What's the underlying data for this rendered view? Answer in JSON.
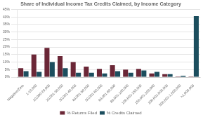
{
  "chart_data": {
    "type": "bar",
    "title": "Share of Individual Income Tax Credits Claimed, by Income Category",
    "categories": [
      "Negative/Zero",
      "1-10,000",
      "10,000-20,000",
      "20,001-30,000",
      "30,001-40,000",
      "40,001-50,000",
      "50,001-60,000",
      "60,001-80,000",
      "80,001-100,000",
      "100,001-150,000",
      "150,001-200,000",
      "200,001-500,000",
      "500,001-1,000,000",
      ">1,000,000"
    ],
    "series": [
      {
        "name": "% Returns Filed",
        "color": "#6B2737",
        "values": [
          6.0,
          15.0,
          19.5,
          14.0,
          10.0,
          7.0,
          5.5,
          8.0,
          5.0,
          5.5,
          2.5,
          2.0,
          0.5,
          0.5
        ]
      },
      {
        "name": "% Credits Claimed",
        "color": "#1C4E5E",
        "values": [
          4.0,
          3.5,
          10.0,
          6.0,
          3.0,
          3.0,
          2.5,
          4.0,
          3.0,
          4.5,
          3.5,
          2.0,
          1.0,
          40.5
        ]
      }
    ],
    "ylim": [
      0,
      45
    ],
    "yticks": [
      {
        "value": 0,
        "label": "0%"
      },
      {
        "value": 5,
        "label": "5%"
      },
      {
        "value": 10,
        "label": "10%"
      },
      {
        "value": 15,
        "label": "15%"
      },
      {
        "value": 20,
        "label": "20%"
      },
      {
        "value": 25,
        "label": "25%"
      },
      {
        "value": 30,
        "label": "30%"
      },
      {
        "value": 35,
        "label": "35%"
      },
      {
        "value": 40,
        "label": "40%"
      },
      {
        "value": 45,
        "label": "45%"
      }
    ],
    "grid": true,
    "legend": "bottom"
  }
}
